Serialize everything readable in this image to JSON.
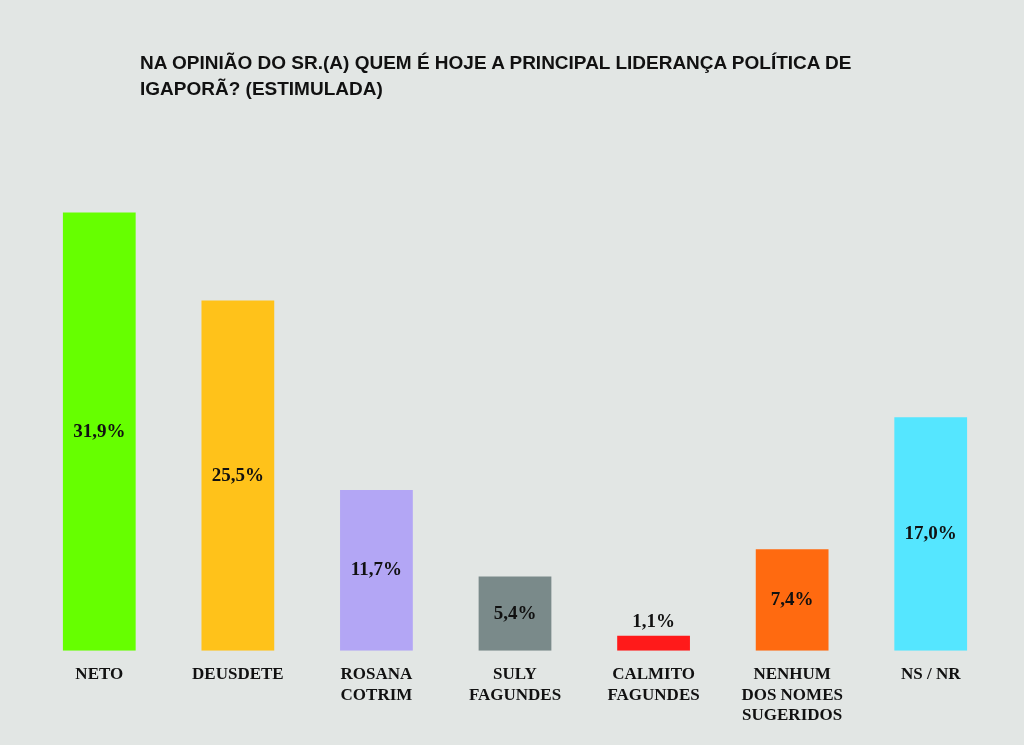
{
  "chart_data": {
    "type": "bar",
    "title": "NA OPINIÃO DO SR.(A) QUEM É HOJE A PRINCIPAL LIDERANÇA POLÍTICA DE IGAPORÃ? (ESTIMULADA)",
    "categories": [
      "NETO",
      "DEUSDETE",
      "ROSANA COTRIM",
      "SULY FAGUNDES",
      "CALMITO FAGUNDES",
      "NENHUM DOS NOMES SUGERIDOS",
      "NS / NR"
    ],
    "values": [
      31.9,
      25.5,
      11.7,
      5.4,
      1.1,
      7.4,
      17.0
    ],
    "colors": [
      "#66ff00",
      "#ffc21a",
      "#b3a6f5",
      "#7a8a8a",
      "#ff1a1a",
      "#ff6a10",
      "#55e6ff"
    ],
    "value_labels": [
      "31,9%",
      "25,5%",
      "11,7%",
      "5,4%",
      "1,1%",
      "7,4%",
      "17,0%"
    ],
    "grid": false,
    "legend": false
  }
}
